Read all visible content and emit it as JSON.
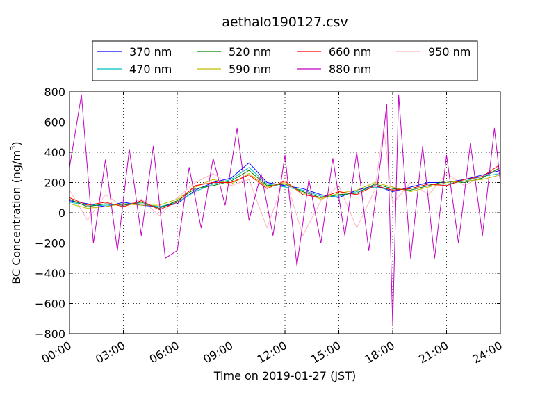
{
  "chart_data": {
    "type": "line",
    "title": "aethalo190127.csv",
    "xlabel": "Time on 2019-01-27 (JST)",
    "ylabel": "BC Concentration (ng/m³)",
    "ylabel_main": "BC Concentration (ng/m",
    "ylabel_sup": "3",
    "ylabel_close": ")",
    "xlim": [
      "00:00",
      "24:00"
    ],
    "ylim": [
      -800,
      800
    ],
    "x_ticks": [
      "00:00",
      "03:00",
      "06:00",
      "09:00",
      "12:00",
      "15:00",
      "18:00",
      "21:00",
      "24:00"
    ],
    "y_ticks": [
      "−800",
      "−600",
      "−400",
      "−200",
      "0",
      "200",
      "400",
      "600",
      "800"
    ],
    "y_tick_values": [
      -800,
      -600,
      -400,
      -200,
      0,
      200,
      400,
      600,
      800
    ],
    "grid": true,
    "legend_position": "top-center",
    "series": [
      {
        "name": "370 nm",
        "color": "#0000ff",
        "x": [
          "00:00",
          "01:00",
          "02:00",
          "03:00",
          "04:00",
          "05:00",
          "06:00",
          "07:00",
          "08:00",
          "09:00",
          "10:00",
          "11:00",
          "12:00",
          "13:00",
          "14:00",
          "15:00",
          "16:00",
          "17:00",
          "18:00",
          "19:00",
          "20:00",
          "21:00",
          "22:00",
          "23:00",
          "24:00"
        ],
        "values": [
          80,
          60,
          40,
          70,
          50,
          40,
          60,
          150,
          200,
          230,
          330,
          200,
          180,
          160,
          120,
          100,
          150,
          180,
          140,
          170,
          200,
          200,
          220,
          250,
          280
        ]
      },
      {
        "name": "470 nm",
        "color": "#00bfbf",
        "x": [
          "00:00",
          "01:00",
          "02:00",
          "03:00",
          "04:00",
          "05:00",
          "06:00",
          "07:00",
          "08:00",
          "09:00",
          "10:00",
          "11:00",
          "12:00",
          "13:00",
          "14:00",
          "15:00",
          "16:00",
          "17:00",
          "18:00",
          "19:00",
          "20:00",
          "21:00",
          "22:00",
          "23:00",
          "24:00"
        ],
        "values": [
          70,
          50,
          50,
          60,
          60,
          40,
          70,
          140,
          190,
          220,
          300,
          190,
          170,
          150,
          110,
          110,
          140,
          170,
          150,
          160,
          190,
          190,
          210,
          240,
          260
        ]
      },
      {
        "name": "520 nm",
        "color": "#008000",
        "x": [
          "00:00",
          "01:00",
          "02:00",
          "03:00",
          "04:00",
          "05:00",
          "06:00",
          "07:00",
          "08:00",
          "09:00",
          "10:00",
          "11:00",
          "12:00",
          "13:00",
          "14:00",
          "15:00",
          "16:00",
          "17:00",
          "18:00",
          "19:00",
          "20:00",
          "21:00",
          "22:00",
          "23:00",
          "24:00"
        ],
        "values": [
          90,
          40,
          60,
          50,
          70,
          30,
          80,
          160,
          180,
          210,
          280,
          180,
          190,
          140,
          100,
          120,
          130,
          190,
          160,
          150,
          180,
          210,
          200,
          230,
          300
        ]
      },
      {
        "name": "590 nm",
        "color": "#bfbf00",
        "x": [
          "00:00",
          "01:00",
          "02:00",
          "03:00",
          "04:00",
          "05:00",
          "06:00",
          "07:00",
          "08:00",
          "09:00",
          "10:00",
          "11:00",
          "12:00",
          "13:00",
          "14:00",
          "15:00",
          "16:00",
          "17:00",
          "18:00",
          "19:00",
          "20:00",
          "21:00",
          "22:00",
          "23:00",
          "24:00"
        ],
        "values": [
          60,
          30,
          40,
          60,
          50,
          50,
          90,
          170,
          220,
          190,
          260,
          170,
          200,
          130,
          90,
          130,
          150,
          200,
          170,
          140,
          170,
          200,
          210,
          220,
          250
        ]
      },
      {
        "name": "660 nm",
        "color": "#ff0000",
        "x": [
          "00:00",
          "01:00",
          "02:00",
          "03:00",
          "04:00",
          "05:00",
          "06:00",
          "07:00",
          "08:00",
          "09:00",
          "10:00",
          "11:00",
          "12:00",
          "13:00",
          "14:00",
          "15:00",
          "16:00",
          "17:00",
          "18:00",
          "19:00",
          "20:00",
          "21:00",
          "22:00",
          "23:00",
          "24:00"
        ],
        "values": [
          100,
          50,
          70,
          40,
          80,
          20,
          70,
          180,
          200,
          200,
          250,
          160,
          210,
          120,
          100,
          140,
          120,
          180,
          150,
          160,
          190,
          180,
          220,
          240,
          320
        ]
      },
      {
        "name": "880 nm",
        "color": "#bf00bf",
        "x": [
          "00:00",
          "00:40",
          "01:20",
          "02:00",
          "02:40",
          "03:20",
          "04:00",
          "04:40",
          "05:20",
          "06:00",
          "06:40",
          "07:20",
          "08:00",
          "08:40",
          "09:20",
          "10:00",
          "10:40",
          "11:20",
          "12:00",
          "12:40",
          "13:20",
          "14:00",
          "14:40",
          "15:20",
          "16:00",
          "16:40",
          "17:20",
          "17:40",
          "18:00",
          "18:20",
          "19:00",
          "19:40",
          "20:20",
          "21:00",
          "21:40",
          "22:20",
          "23:00",
          "23:40",
          "24:00"
        ],
        "values": [
          300,
          780,
          -200,
          350,
          -250,
          420,
          -150,
          440,
          -300,
          -250,
          300,
          -100,
          360,
          50,
          560,
          -50,
          260,
          -150,
          380,
          -350,
          220,
          -200,
          360,
          -150,
          400,
          -250,
          350,
          720,
          -740,
          780,
          -300,
          440,
          -300,
          380,
          -200,
          460,
          -150,
          560,
          200
        ]
      },
      {
        "name": "950 nm",
        "color": "#ffb6c1",
        "x": [
          "00:00",
          "01:00",
          "02:00",
          "03:00",
          "04:00",
          "05:00",
          "06:00",
          "07:00",
          "08:00",
          "09:00",
          "10:00",
          "11:00",
          "12:00",
          "13:00",
          "14:00",
          "15:00",
          "16:00",
          "17:00",
          "17:30",
          "18:00",
          "19:00",
          "20:00",
          "21:00",
          "22:00",
          "23:00",
          "24:00"
        ],
        "values": [
          150,
          -50,
          120,
          40,
          90,
          -20,
          100,
          200,
          260,
          180,
          220,
          -100,
          240,
          -150,
          80,
          180,
          -100,
          150,
          560,
          60,
          200,
          120,
          260,
          180,
          240,
          300
        ]
      }
    ]
  }
}
